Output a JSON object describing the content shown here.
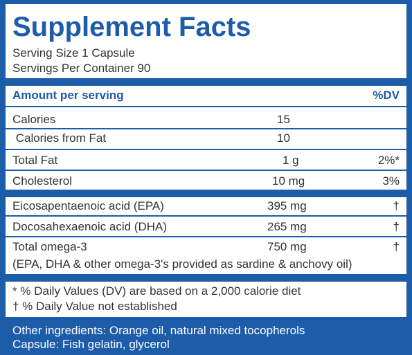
{
  "header": {
    "title": "Supplement Facts",
    "serving_size": "Serving Size 1 Capsule",
    "servings_per_container": "Servings Per Container 90"
  },
  "table": {
    "columns": [
      "Amount per serving",
      "%DV"
    ],
    "rows": [
      [
        "Calories",
        "15",
        ""
      ],
      [
        " Calories from Fat",
        "10",
        ""
      ],
      [
        "Total Fat",
        "1 g",
        "2%*"
      ],
      [
        "Cholesterol",
        "10 mg",
        "3%"
      ],
      [
        "Eicosapentaenoic acid (EPA)",
        "395 mg",
        "†"
      ],
      [
        "Docosahexaenoic acid (DHA)",
        "265 mg",
        "†"
      ],
      [
        "Total omega-3",
        "750 mg",
        "†"
      ]
    ],
    "note": "(EPA, DHA & other omega-3's provided as sardine & anchovy oil)"
  },
  "footnotes": [
    "* % Daily Values (DV) are based on a 2,000 calorie diet",
    "† % Daily Value not established"
  ],
  "ingredients": [
    "Other ingredients: Orange oil, natural mixed tocopherols",
    "Capsule: Fish gelatin, glycerol"
  ]
}
